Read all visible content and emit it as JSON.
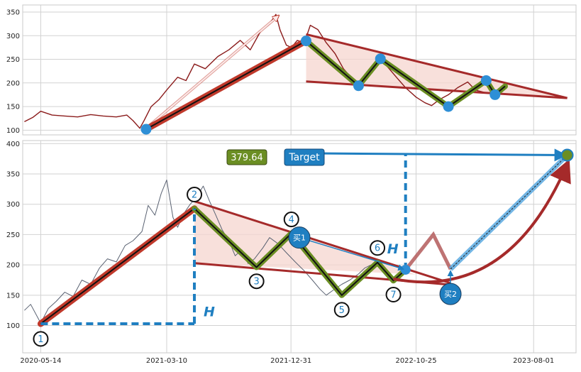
{
  "colors": {
    "price_top": "#8b1c1c",
    "price_bottom": "#5a6272",
    "thrust_line": "#c0392b",
    "wave_line": "#6b8e23",
    "triangle_fill": "#f6d5cf",
    "triangle_edge": "#a52a2a",
    "pivot_dot": "#2e8fd6",
    "target_blue": "#1f7fc1",
    "label_circle": "#1f7fc1",
    "projection_red": "#b35a5a"
  },
  "chart_data": [
    {
      "id": "top",
      "type": "line",
      "x_dates": [
        "2020-04-01",
        "2023-11-10"
      ],
      "ylim": [
        90,
        365
      ],
      "yticks": [
        100,
        150,
        200,
        250,
        300,
        350
      ],
      "xtick_dates": [
        "2020-05-14",
        "2021-03-10",
        "2021-12-31",
        "2022-10-25",
        "2023-08-01"
      ],
      "series": [
        {
          "values_desc": "price",
          "points": [
            [
              "2020-04-05",
              118
            ],
            [
              "2020-04-25",
              127
            ],
            [
              "2020-05-14",
              140
            ],
            [
              "2020-06-10",
              132
            ],
            [
              "2020-07-10",
              130
            ],
            [
              "2020-08-10",
              128
            ],
            [
              "2020-09-10",
              133
            ],
            [
              "2020-10-10",
              130
            ],
            [
              "2020-11-10",
              128
            ],
            [
              "2020-12-05",
              132
            ],
            [
              "2020-12-20",
              120
            ],
            [
              "2021-01-05",
              104
            ],
            [
              "2021-01-15",
              120
            ],
            [
              "2021-02-01",
              150
            ],
            [
              "2021-02-20",
              165
            ],
            [
              "2021-03-10",
              185
            ],
            [
              "2021-04-05",
              212
            ],
            [
              "2021-04-25",
              205
            ],
            [
              "2021-05-15",
              240
            ],
            [
              "2021-06-10",
              230
            ],
            [
              "2021-07-10",
              256
            ],
            [
              "2021-08-05",
              270
            ],
            [
              "2021-09-01",
              290
            ],
            [
              "2021-09-25",
              270
            ],
            [
              "2021-10-20",
              310
            ],
            [
              "2021-11-10",
              325
            ],
            [
              "2021-11-25",
              345
            ],
            [
              "2021-12-05",
              312
            ],
            [
              "2021-12-20",
              280
            ],
            [
              "2022-01-01",
              275
            ],
            [
              "2022-01-15",
              290
            ],
            [
              "2022-02-01",
              285
            ],
            [
              "2022-02-15",
              322
            ],
            [
              "2022-03-05",
              313
            ],
            [
              "2022-03-25",
              285
            ],
            [
              "2022-04-15",
              262
            ],
            [
              "2022-05-05",
              230
            ],
            [
              "2022-05-25",
              210
            ],
            [
              "2022-06-10",
              195
            ],
            [
              "2022-06-25",
              218
            ],
            [
              "2022-07-15",
              235
            ],
            [
              "2022-08-01",
              250
            ],
            [
              "2022-08-20",
              232
            ],
            [
              "2022-09-10",
              210
            ],
            [
              "2022-09-30",
              190
            ],
            [
              "2022-10-25",
              170
            ],
            [
              "2022-11-15",
              158
            ],
            [
              "2022-12-01",
              152
            ],
            [
              "2022-12-20",
              165
            ],
            [
              "2023-01-10",
              175
            ],
            [
              "2023-02-01",
              190
            ],
            [
              "2023-02-25",
              202
            ],
            [
              "2023-03-15",
              185
            ],
            [
              "2023-04-05",
              180
            ],
            [
              "2023-04-25",
              176
            ],
            [
              "2023-05-15",
              190
            ]
          ]
        }
      ],
      "thrust": [
        [
          "2021-01-20",
          102
        ],
        [
          "2022-02-05",
          289
        ]
      ],
      "arrow": [
        [
          "2021-01-20",
          104
        ],
        [
          "2021-12-01",
          342
        ]
      ],
      "zigzag": [
        [
          "2022-02-05",
          289
        ],
        [
          "2022-06-10",
          194
        ],
        [
          "2022-08-01",
          251
        ],
        [
          "2023-01-10",
          150
        ],
        [
          "2023-04-10",
          205
        ],
        [
          "2023-05-01",
          175
        ],
        [
          "2023-05-25",
          193
        ]
      ],
      "triangle": {
        "upper": [
          [
            "2022-02-05",
            303
          ],
          [
            "2023-10-20",
            168
          ]
        ],
        "lower": [
          [
            "2022-02-05",
            203
          ],
          [
            "2023-10-20",
            168
          ]
        ]
      },
      "pivots": [
        [
          "2021-01-20",
          102
        ],
        [
          "2022-02-05",
          289
        ],
        [
          "2022-06-10",
          194
        ],
        [
          "2022-08-01",
          251
        ],
        [
          "2023-01-10",
          150
        ],
        [
          "2023-04-10",
          205
        ],
        [
          "2023-05-01",
          175
        ]
      ]
    },
    {
      "id": "bottom",
      "type": "line",
      "x_dates": [
        "2020-04-01",
        "2023-11-10"
      ],
      "ylim": [
        55,
        405
      ],
      "yticks": [
        100,
        150,
        200,
        250,
        300,
        350,
        400
      ],
      "xtick_dates": [
        "2020-05-14",
        "2021-03-10",
        "2021-12-31",
        "2022-10-25",
        "2023-08-01"
      ],
      "series": [
        {
          "values_desc": "price",
          "points": [
            [
              "2020-04-05",
              125
            ],
            [
              "2020-04-20",
              135
            ],
            [
              "2020-05-14",
              104
            ],
            [
              "2020-06-01",
              128
            ],
            [
              "2020-06-20",
              140
            ],
            [
              "2020-07-10",
              155
            ],
            [
              "2020-07-30",
              148
            ],
            [
              "2020-08-20",
              175
            ],
            [
              "2020-09-10",
              168
            ],
            [
              "2020-10-01",
              195
            ],
            [
              "2020-10-20",
              210
            ],
            [
              "2020-11-10",
              205
            ],
            [
              "2020-12-01",
              232
            ],
            [
              "2020-12-20",
              240
            ],
            [
              "2021-01-10",
              255
            ],
            [
              "2021-01-25",
              298
            ],
            [
              "2021-02-10",
              282
            ],
            [
              "2021-02-25",
              318
            ],
            [
              "2021-03-10",
              340
            ],
            [
              "2021-03-25",
              278
            ],
            [
              "2021-04-05",
              262
            ],
            [
              "2021-04-20",
              285
            ],
            [
              "2021-05-05",
              300
            ],
            [
              "2021-05-20",
              312
            ],
            [
              "2021-06-05",
              330
            ],
            [
              "2021-06-20",
              305
            ],
            [
              "2021-07-05",
              282
            ],
            [
              "2021-07-20",
              258
            ],
            [
              "2021-08-05",
              240
            ],
            [
              "2021-08-20",
              215
            ],
            [
              "2021-09-05",
              225
            ],
            [
              "2021-09-20",
              202
            ],
            [
              "2021-10-05",
              210
            ],
            [
              "2021-10-25",
              228
            ],
            [
              "2021-11-10",
              245
            ],
            [
              "2021-11-30",
              235
            ],
            [
              "2021-12-20",
              220
            ],
            [
              "2022-01-10",
              205
            ],
            [
              "2022-02-01",
              190
            ],
            [
              "2022-02-20",
              175
            ],
            [
              "2022-03-10",
              160
            ],
            [
              "2022-03-25",
              150
            ],
            [
              "2022-04-10",
              158
            ],
            [
              "2022-05-01",
              168
            ],
            [
              "2022-05-20",
              175
            ],
            [
              "2022-06-10",
              185
            ],
            [
              "2022-06-25",
              195
            ],
            [
              "2022-07-10",
              200
            ]
          ]
        }
      ],
      "thrust": [
        [
          "2020-05-14",
          103
        ],
        [
          "2021-05-15",
          293
        ]
      ],
      "zigzag": [
        [
          "2021-05-15",
          293
        ],
        [
          "2021-10-10",
          196
        ],
        [
          "2022-01-01",
          252
        ],
        [
          "2022-05-01",
          150
        ],
        [
          "2022-07-25",
          204
        ],
        [
          "2022-09-01",
          174
        ],
        [
          "2022-09-30",
          192
        ]
      ],
      "triangle": {
        "upper": [
          [
            "2021-05-15",
            305
          ],
          [
            "2022-10-25",
            184
          ]
        ],
        "lower": [
          [
            "2021-05-15",
            203
          ],
          [
            "2022-10-25",
            184
          ]
        ],
        "upper_ext": [
          [
            "2021-05-15",
            305
          ],
          [
            "2023-01-15",
            170
          ]
        ],
        "lower_ext": [
          [
            "2021-05-15",
            203
          ],
          [
            "2023-01-20",
            167
          ]
        ]
      },
      "height_marker": {
        "base": [
          [
            "2020-05-14",
            103
          ],
          [
            "2021-05-15",
            103
          ]
        ],
        "vertical": [
          [
            "2021-05-15",
            103
          ],
          [
            "2021-05-15",
            293
          ]
        ],
        "label": "H"
      },
      "target_marker": {
        "vertical": [
          [
            "2022-09-30",
            192
          ],
          [
            "2022-09-30",
            384
          ]
        ],
        "label": "H"
      },
      "target_line": [
        [
          "2022-02-01",
          384
        ],
        [
          "2023-10-15",
          381
        ]
      ],
      "target_value_box": "379.64",
      "target_box": "Target",
      "target_point": [
        "2023-10-20",
        381
      ],
      "projection": [
        [
          "2022-09-30",
          192
        ],
        [
          "2022-12-05",
          250
        ],
        [
          "2023-01-15",
          193
        ],
        [
          "2023-10-20",
          381
        ]
      ],
      "projection_curve": [
        [
          "2022-09-01",
          177
        ],
        [
          "2023-06-01",
          210
        ],
        [
          "2023-10-20",
          366
        ]
      ],
      "buy_labels": [
        {
          "text": "买1",
          "at": [
            "2022-01-20",
            245
          ],
          "arrow_to": [
            "2022-09-25",
            193
          ]
        },
        {
          "text": "买2",
          "at": [
            "2023-01-15",
            152
          ],
          "arrow_to": [
            "2023-01-15",
            190
          ]
        }
      ],
      "wave_labels": [
        {
          "text": "1",
          "at": [
            "2020-05-14",
            78
          ]
        },
        {
          "text": "2",
          "at": [
            "2021-05-15",
            316
          ]
        },
        {
          "text": "3",
          "at": [
            "2021-10-10",
            173
          ]
        },
        {
          "text": "4",
          "at": [
            "2022-01-01",
            275
          ]
        },
        {
          "text": "5",
          "at": [
            "2022-05-01",
            126
          ]
        },
        {
          "text": "6",
          "at": [
            "2022-07-25",
            228
          ]
        },
        {
          "text": "7",
          "at": [
            "2022-09-01",
            151
          ]
        }
      ]
    }
  ]
}
